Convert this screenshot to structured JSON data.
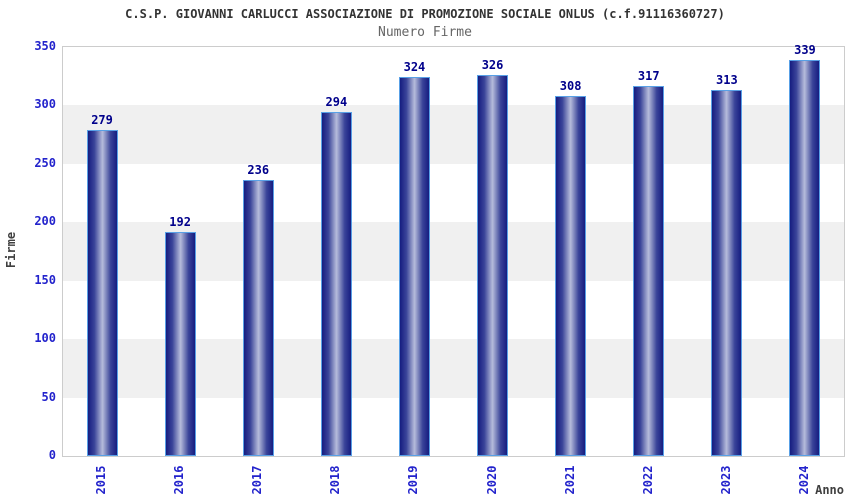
{
  "header": {
    "title": "C.S.P. GIOVANNI CARLUCCI ASSOCIAZIONE DI PROMOZIONE SOCIALE ONLUS (c.f.91116360727)",
    "subtitle": "Numero Firme"
  },
  "chart_data": {
    "type": "bar",
    "title": "Numero Firme",
    "categories": [
      "2015",
      "2016",
      "2017",
      "2018",
      "2019",
      "2020",
      "2021",
      "2022",
      "2023",
      "2024"
    ],
    "values": [
      279,
      192,
      236,
      294,
      324,
      326,
      308,
      317,
      313,
      339
    ],
    "xlabel": "Anno",
    "ylabel": "Firme",
    "ylim": [
      0,
      350
    ],
    "yticks": [
      0,
      50,
      100,
      150,
      200,
      250,
      300,
      350
    ],
    "grid": "alternating-horizontal-bands",
    "legend": "none",
    "value_labels": "above-bars",
    "colors": {
      "bar_dark": "#161d80",
      "bar_mid": "#3a4499",
      "bar_light": "#b6bcdb",
      "bar_border": "#58a0e6",
      "tick_text": "#2323cc",
      "value_label": "#00008b",
      "band_gray": "#f0f0f0",
      "band_white": "#ffffff",
      "plot_border": "#cccccc",
      "axis_title_color": "#404040",
      "title_color": "#333333",
      "subtitle_color": "#666666"
    }
  }
}
